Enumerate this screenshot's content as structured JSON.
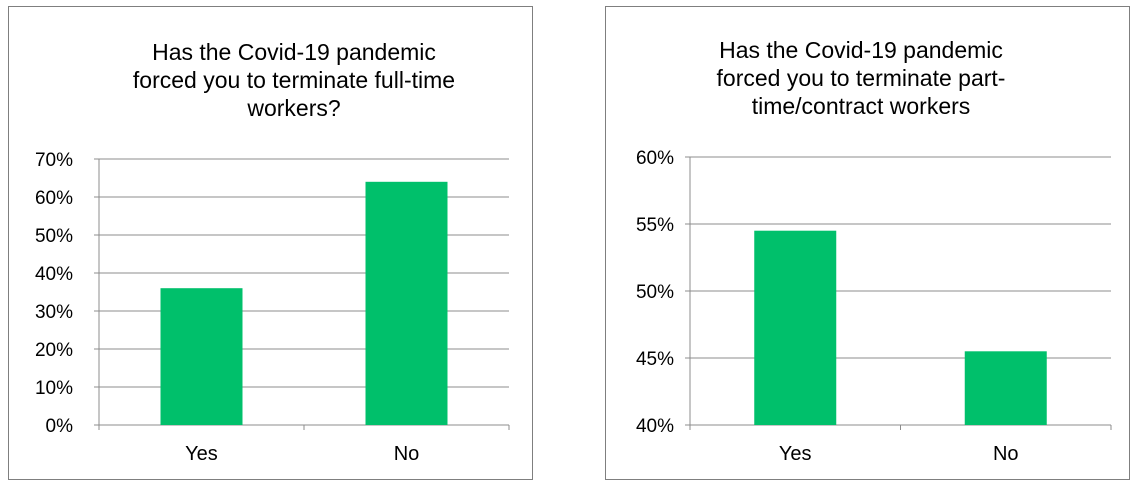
{
  "chart_data": [
    {
      "type": "bar",
      "title": "Has the Covid-19 pandemic\nforced you to terminate full-time\nworkers?",
      "categories": [
        "Yes",
        "No"
      ],
      "values": [
        0.36,
        0.64
      ],
      "yticks": [
        "0%",
        "10%",
        "20%",
        "30%",
        "40%",
        "50%",
        "60%",
        "70%"
      ],
      "ylim": [
        0,
        0.7
      ],
      "grid": true,
      "bar_color": "#00c06b"
    },
    {
      "type": "bar",
      "title": "Has the Covid-19 pandemic\nforced you to terminate part-\ntime/contract workers",
      "categories": [
        "Yes",
        "No"
      ],
      "values": [
        0.545,
        0.455
      ],
      "yticks": [
        "40%",
        "45%",
        "50%",
        "55%",
        "60%"
      ],
      "ylim": [
        0.4,
        0.6
      ],
      "grid": true,
      "bar_color": "#00c06b"
    }
  ]
}
